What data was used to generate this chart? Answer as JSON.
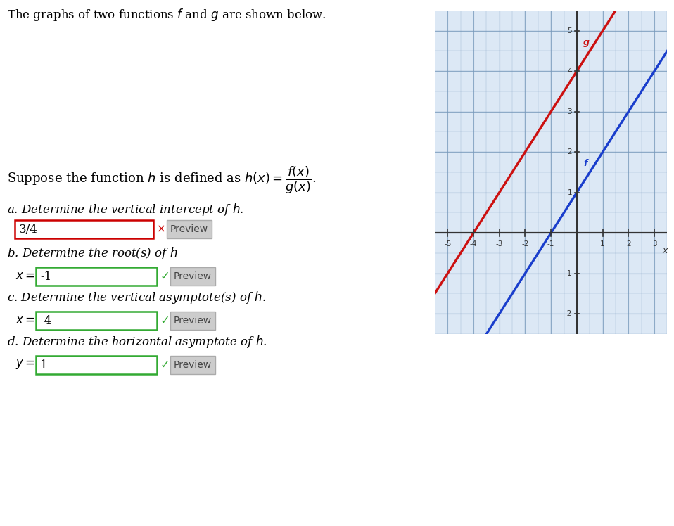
{
  "title_text": "The graphs of two functions f and g are shown below.",
  "graph_xlim": [
    -5.5,
    3.5
  ],
  "graph_ylim": [
    -2.5,
    5.5
  ],
  "graph_xticks": [
    -5,
    -4,
    -3,
    -2,
    -1,
    1,
    2,
    3
  ],
  "graph_yticks": [
    -2,
    -1,
    1,
    2,
    3,
    4,
    5
  ],
  "f_color": "#1a3ecc",
  "g_color": "#cc1111",
  "f_slope": 1,
  "f_intercept": 1,
  "g_slope": 1,
  "g_intercept": 4,
  "f_label": "f",
  "g_label": "g",
  "bg_color": "#dce8f5",
  "grid_color": "#7799bb",
  "axis_color": "#333333",
  "answer_a": "3/4",
  "answer_b": "-1",
  "answer_b_prefix": "x = ",
  "answer_c": "-4",
  "answer_c_prefix": "x = ",
  "answer_d": "1",
  "answer_d_prefix": "y = ",
  "box_a_color": "#cc0000",
  "box_bcd_color": "#33aa33",
  "preview_bg": "#cccccc",
  "preview_text_color": "#444444"
}
